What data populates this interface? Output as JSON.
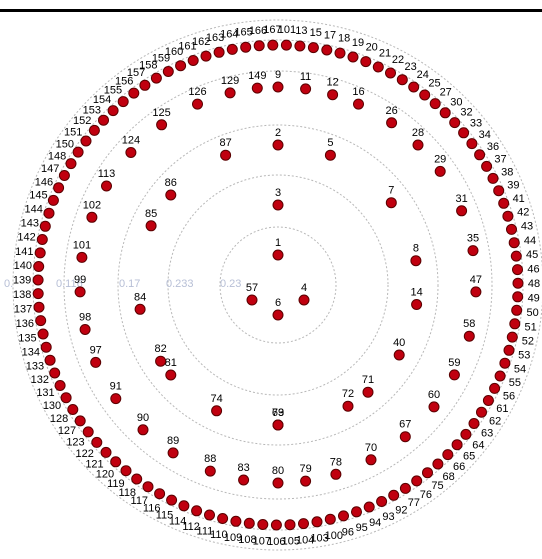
{
  "chart_data": {
    "type": "scatter",
    "coordinate_system": "polar",
    "radial_ticks": [
      "0.116",
      "0.17",
      "0.233",
      "0.23"
    ],
    "node_color": "#c0000f",
    "ring_color": "#b8b8b8",
    "tick_color": "#b7bfd6",
    "rings": [
      {
        "ring": 1,
        "labels": [
          "1",
          "4",
          "6",
          "57"
        ]
      },
      {
        "ring": 2,
        "labels": [
          "3",
          "7",
          "8",
          "14",
          "40",
          "71",
          "72",
          "73",
          "74",
          "81",
          "84",
          "86",
          "87",
          "2",
          "5"
        ]
      },
      {
        "ring": 3,
        "labels": [
          "69",
          "9",
          "11",
          "12",
          "16",
          "26",
          "28",
          "29",
          "31",
          "35",
          "47",
          "58",
          "59",
          "60",
          "67",
          "70",
          "78",
          "79",
          "80",
          "83",
          "88",
          "89",
          "90",
          "91",
          "97",
          "98",
          "99",
          "101",
          "102",
          "113",
          "124",
          "125",
          "126",
          "129",
          "149",
          "82",
          "85"
        ]
      },
      {
        "ring": 4,
        "labels": [
          "101",
          "13",
          "15",
          "17",
          "18",
          "19",
          "20",
          "21",
          "22",
          "23",
          "24",
          "25",
          "27",
          "30",
          "32",
          "33",
          "34",
          "36",
          "37",
          "38",
          "39",
          "41",
          "42",
          "43",
          "44",
          "45",
          "46",
          "48",
          "49",
          "50",
          "51",
          "52",
          "53",
          "54",
          "55",
          "56",
          "61",
          "62",
          "63",
          "64",
          "65",
          "66",
          "68",
          "75",
          "76",
          "77",
          "92",
          "93",
          "94",
          "95",
          "96",
          "100",
          "103",
          "104",
          "105",
          "106",
          "107",
          "108",
          "109",
          "110",
          "111",
          "112",
          "114",
          "115",
          "116",
          "117",
          "118",
          "119",
          "120",
          "121",
          "122",
          "123",
          "127",
          "128",
          "130",
          "131",
          "132",
          "133",
          "134",
          "135",
          "136",
          "137",
          "138",
          "139",
          "140",
          "141",
          "142",
          "143",
          "144",
          "145",
          "146",
          "147",
          "148",
          "150",
          "151",
          "152",
          "153",
          "154",
          "155",
          "156",
          "157",
          "158",
          "159",
          "160",
          "161",
          "162",
          "163",
          "164",
          "165",
          "166",
          "167"
        ]
      }
    ],
    "nodes": [
      {
        "label": "1",
        "r": 0.09,
        "theta": 90
      },
      {
        "label": "4",
        "r": 0.09,
        "theta": -30
      },
      {
        "label": "6",
        "r": 0.09,
        "theta": -90
      },
      {
        "label": "57",
        "r": 0.09,
        "theta": -150
      },
      {
        "label": "3",
        "r": 0.27,
        "theta": 90
      },
      {
        "label": "7",
        "r": 0.43,
        "theta": 36
      },
      {
        "label": "8",
        "r": 0.45,
        "theta": 10
      },
      {
        "label": "14",
        "r": 0.45,
        "theta": -8
      },
      {
        "label": "40",
        "r": 0.43,
        "theta": -30
      },
      {
        "label": "71",
        "r": 0.43,
        "theta": -50
      },
      {
        "label": "72",
        "r": 0.45,
        "theta": -60
      },
      {
        "label": "73",
        "r": 0.45,
        "theta": -90
      },
      {
        "label": "74",
        "r": 0.45,
        "theta": -116
      },
      {
        "label": "81",
        "r": 0.43,
        "theta": -140
      },
      {
        "label": "84",
        "r": 0.45,
        "theta": -170
      },
      {
        "label": "86",
        "r": 0.43,
        "theta": 140
      },
      {
        "label": "87",
        "r": 0.45,
        "theta": 112
      },
      {
        "label": "2",
        "r": 0.45,
        "theta": 90
      },
      {
        "label": "5",
        "r": 0.45,
        "theta": 68
      },
      {
        "label": "69",
        "r": 0.45,
        "theta": -90
      },
      {
        "label": "9",
        "r": 0.58,
        "theta": 90
      },
      {
        "label": "11",
        "r": 0.6,
        "theta": 82
      },
      {
        "label": "12",
        "r": 0.62,
        "theta": 74
      },
      {
        "label": "16",
        "r": 0.64,
        "theta": 66
      },
      {
        "label": "26",
        "r": 0.65,
        "theta": 55
      },
      {
        "label": "28",
        "r": 0.65,
        "theta": 45
      },
      {
        "label": "29",
        "r": 0.65,
        "theta": 35
      },
      {
        "label": "31",
        "r": 0.65,
        "theta": 22
      },
      {
        "label": "35",
        "r": 0.65,
        "theta": 10
      },
      {
        "label": "47",
        "r": 0.66,
        "theta": -2
      },
      {
        "label": "58",
        "r": 0.65,
        "theta": -15
      },
      {
        "label": "59",
        "r": 0.65,
        "theta": -27
      },
      {
        "label": "60",
        "r": 0.65,
        "theta": -38
      },
      {
        "label": "67",
        "r": 0.65,
        "theta": -50
      },
      {
        "label": "70",
        "r": 0.64,
        "theta": -62
      },
      {
        "label": "78",
        "r": 0.64,
        "theta": -73
      },
      {
        "label": "79",
        "r": 0.64,
        "theta": -82
      },
      {
        "label": "80",
        "r": 0.64,
        "theta": -90
      },
      {
        "label": "83",
        "r": 0.64,
        "theta": -100
      },
      {
        "label": "88",
        "r": 0.64,
        "theta": -110
      },
      {
        "label": "89",
        "r": 0.65,
        "theta": -122
      },
      {
        "label": "90",
        "r": 0.65,
        "theta": -133
      },
      {
        "label": "91",
        "r": 0.65,
        "theta": -145
      },
      {
        "label": "97",
        "r": 0.65,
        "theta": -157
      },
      {
        "label": "98",
        "r": 0.65,
        "theta": -167
      },
      {
        "label": "99",
        "r": 0.66,
        "theta": -178
      },
      {
        "label": "101",
        "r": 0.66,
        "theta": 172
      },
      {
        "label": "102",
        "r": 0.65,
        "theta": 160
      },
      {
        "label": "113",
        "r": 0.65,
        "theta": 150
      },
      {
        "label": "124",
        "r": 0.65,
        "theta": 138
      },
      {
        "label": "125",
        "r": 0.63,
        "theta": 126
      },
      {
        "label": "126",
        "r": 0.62,
        "theta": 114
      },
      {
        "label": "129",
        "r": 0.6,
        "theta": 104
      },
      {
        "label": "149",
        "r": 0.59,
        "theta": 96
      },
      {
        "label": "82",
        "r": 0.45,
        "theta": -147
      },
      {
        "label": "85",
        "r": 0.45,
        "theta": -205
      }
    ],
    "outer_ring_labels_top": [
      "101",
      "13",
      "15",
      "17",
      "18",
      "19",
      "20",
      "21",
      "22",
      "23",
      "24",
      "25",
      "27",
      "30",
      "32",
      "33",
      "34",
      "36",
      "37",
      "38",
      "39",
      "41",
      "42",
      "43",
      "44",
      "45"
    ],
    "outer_ring_labels_right": [
      "46",
      "48",
      "49",
      "50",
      "51",
      "52",
      "53",
      "54",
      "55",
      "56",
      "61",
      "62",
      "63",
      "64",
      "65",
      "66",
      "68",
      "75",
      "76",
      "77"
    ],
    "outer_ring_labels_bottom": [
      "92",
      "93",
      "94",
      "95",
      "96",
      "100",
      "103",
      "104",
      "105",
      "106",
      "107",
      "108",
      "109",
      "110",
      "111",
      "112",
      "114",
      "115",
      "116",
      "117",
      "118",
      "119"
    ],
    "outer_ring_labels_left": [
      "120",
      "121",
      "122",
      "123",
      "127",
      "128",
      "130",
      "131",
      "132",
      "133",
      "134",
      "135",
      "136",
      "137",
      "138",
      "139",
      "140",
      "141",
      "142",
      "143",
      "144",
      "145",
      "146",
      "147",
      "148"
    ],
    "outer_ring_labels_topleft": [
      "150",
      "151",
      "152",
      "153",
      "154",
      "155",
      "156",
      "157",
      "158",
      "159",
      "160",
      "161",
      "162",
      "163",
      "164",
      "165",
      "166",
      "167"
    ]
  }
}
